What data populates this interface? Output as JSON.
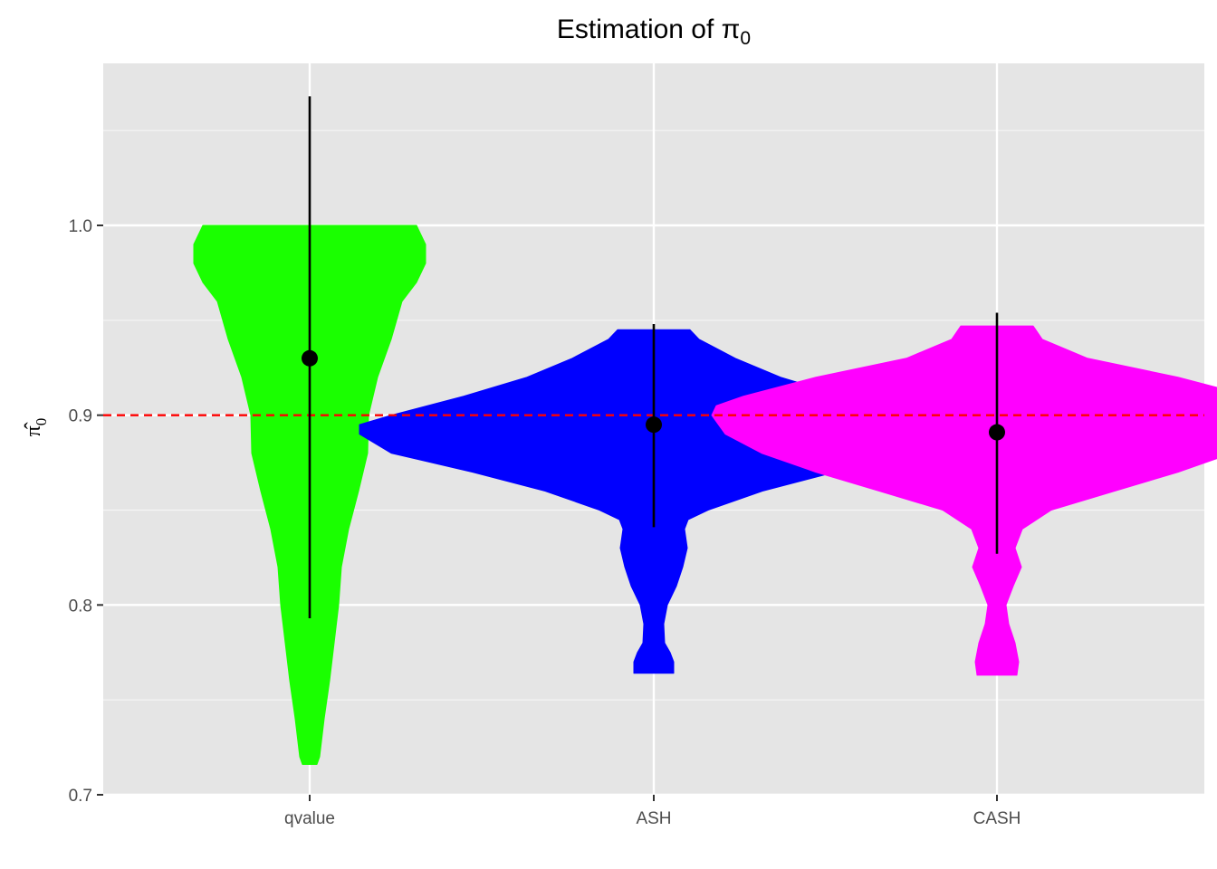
{
  "chart_data": {
    "type": "violin",
    "title": "Estimation of π",
    "title_subscript": "0",
    "ylabel": "π̂",
    "ylabel_subscript": "0",
    "xlabel": "",
    "categories": [
      "qvalue",
      "ASH",
      "CASH"
    ],
    "ylim": [
      0.7,
      1.085
    ],
    "yticks": [
      0.7,
      0.8,
      0.9,
      1.0
    ],
    "ytick_labels": [
      "0.7",
      "0.8",
      "0.9",
      "1.0"
    ],
    "reference_line": {
      "y": 0.9,
      "style": "dashed",
      "color": "#ff0000"
    },
    "grid": true,
    "series": [
      {
        "category": "qvalue",
        "color": "#1aff00",
        "mean": 0.93,
        "interval": [
          0.793,
          1.068
        ],
        "density_y": [
          0.716,
          0.72,
          0.74,
          0.76,
          0.78,
          0.8,
          0.82,
          0.84,
          0.86,
          0.88,
          0.9,
          0.92,
          0.94,
          0.96,
          0.97,
          0.98,
          0.99,
          1.0
        ],
        "density_halfwidth": [
          0.008,
          0.011,
          0.016,
          0.022,
          0.027,
          0.032,
          0.035,
          0.043,
          0.054,
          0.064,
          0.065,
          0.075,
          0.09,
          0.102,
          0.118,
          0.128,
          0.128,
          0.118
        ]
      },
      {
        "category": "ASH",
        "color": "#0000ff",
        "mean": 0.895,
        "interval": [
          0.841,
          0.948
        ],
        "density_y": [
          0.764,
          0.77,
          0.775,
          0.78,
          0.79,
          0.8,
          0.81,
          0.82,
          0.83,
          0.84,
          0.845,
          0.85,
          0.86,
          0.87,
          0.88,
          0.89,
          0.895,
          0.9,
          0.91,
          0.92,
          0.93,
          0.94,
          0.945
        ],
        "density_halfwidth": [
          0.022,
          0.022,
          0.018,
          0.012,
          0.011,
          0.015,
          0.025,
          0.032,
          0.037,
          0.034,
          0.038,
          0.06,
          0.12,
          0.2,
          0.29,
          0.325,
          0.325,
          0.29,
          0.21,
          0.14,
          0.09,
          0.05,
          0.04
        ]
      },
      {
        "category": "CASH",
        "color": "#ff00ff",
        "mean": 0.891,
        "interval": [
          0.827,
          0.954
        ],
        "density_y": [
          0.763,
          0.77,
          0.78,
          0.79,
          0.8,
          0.81,
          0.82,
          0.83,
          0.84,
          0.85,
          0.86,
          0.87,
          0.88,
          0.89,
          0.9,
          0.905,
          0.91,
          0.92,
          0.93,
          0.94,
          0.947
        ],
        "density_halfwidth": [
          0.022,
          0.024,
          0.02,
          0.013,
          0.01,
          0.018,
          0.027,
          0.02,
          0.028,
          0.06,
          0.13,
          0.2,
          0.26,
          0.3,
          0.315,
          0.31,
          0.28,
          0.2,
          0.1,
          0.05,
          0.04
        ]
      }
    ]
  }
}
